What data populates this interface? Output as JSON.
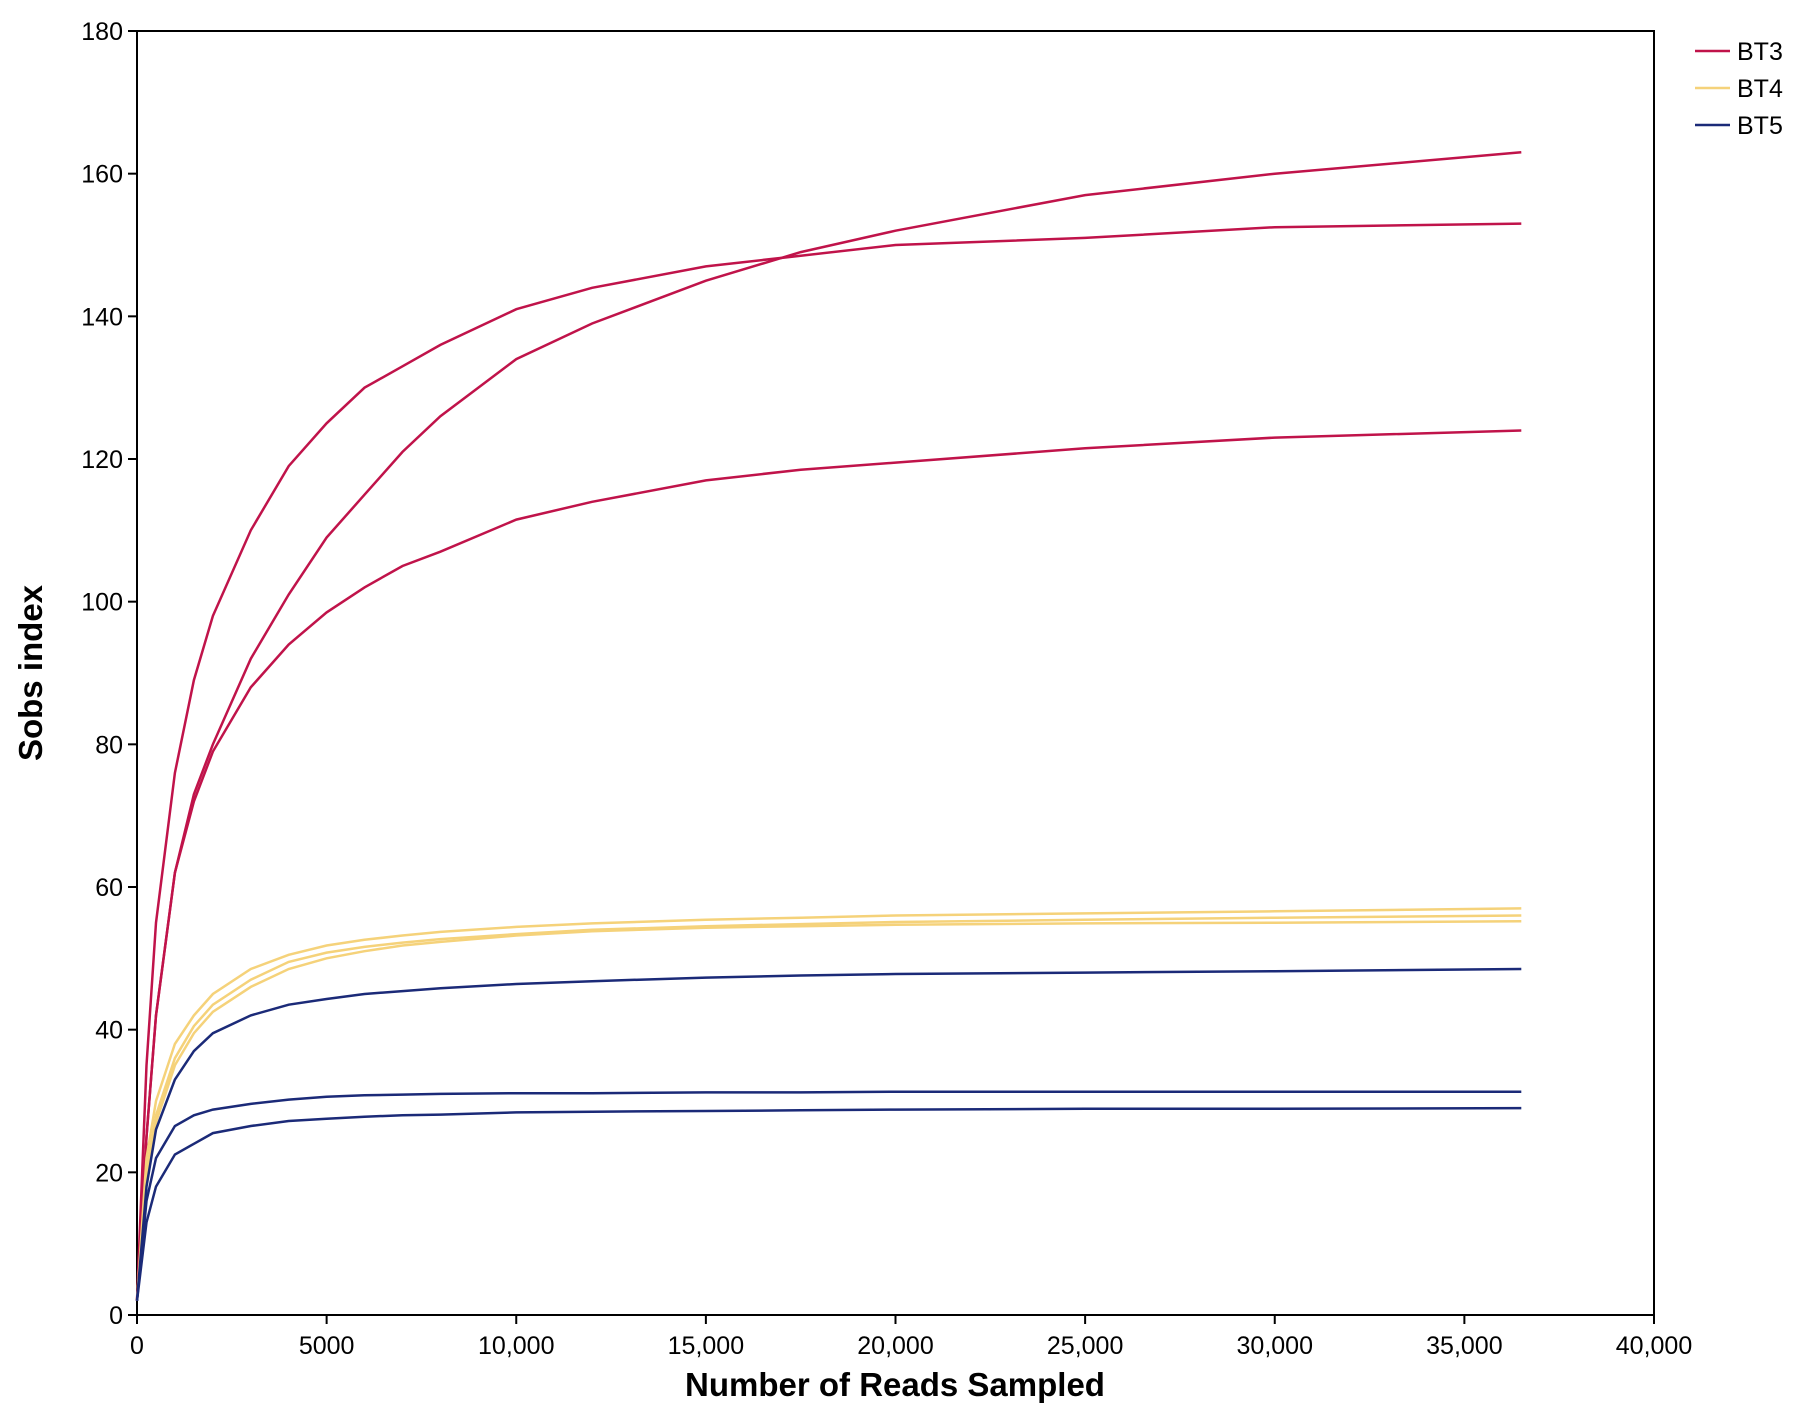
{
  "chart_data": {
    "type": "line",
    "xlabel": "Number of Reads Sampled",
    "ylabel": "Sobs index",
    "x": [
      0,
      250,
      500,
      1000,
      1500,
      2000,
      3000,
      4000,
      5000,
      6000,
      7000,
      8000,
      10000,
      12000,
      15000,
      17500,
      20000,
      25000,
      30000,
      36500
    ],
    "series": [
      {
        "name": "BT3",
        "color": "#c0134a",
        "replicates": [
          [
            2,
            25,
            42,
            62,
            73,
            80,
            92,
            101,
            109,
            115,
            121,
            126,
            134,
            139,
            145,
            149,
            152,
            157,
            160,
            163
          ],
          [
            2,
            35,
            55,
            76,
            89,
            98,
            110,
            119,
            125,
            130,
            133,
            136,
            141,
            144,
            147,
            148.5,
            150,
            151,
            152.5,
            153
          ],
          [
            2,
            25,
            42,
            62,
            72,
            79,
            88,
            94,
            98.5,
            102,
            105,
            107,
            111.5,
            114,
            117,
            118.5,
            119.5,
            121.5,
            123,
            124
          ]
        ]
      },
      {
        "name": "BT4",
        "color": "#f5d27a",
        "replicates": [
          [
            2,
            22,
            30,
            38,
            42,
            45,
            48.5,
            50.5,
            51.8,
            52.6,
            53.2,
            53.7,
            54.4,
            54.9,
            55.4,
            55.7,
            56,
            56.3,
            56.6,
            57
          ],
          [
            2,
            20,
            28,
            36,
            40.5,
            43.5,
            47,
            49.5,
            50.8,
            51.6,
            52.2,
            52.7,
            53.4,
            54,
            54.5,
            54.8,
            55.1,
            55.4,
            55.7,
            56
          ],
          [
            2,
            19,
            27,
            35,
            39.5,
            42.5,
            46,
            48.5,
            50,
            51,
            51.8,
            52.3,
            53.2,
            53.8,
            54.3,
            54.5,
            54.7,
            54.9,
            55,
            55.2
          ]
        ]
      },
      {
        "name": "BT5",
        "color": "#1b2a78",
        "replicates": [
          [
            2,
            18,
            26,
            33,
            37,
            39.5,
            42,
            43.5,
            44.3,
            45,
            45.4,
            45.8,
            46.4,
            46.8,
            47.3,
            47.6,
            47.8,
            48,
            48.2,
            48.5
          ],
          [
            2,
            16,
            22,
            26.5,
            28,
            28.8,
            29.6,
            30.2,
            30.6,
            30.8,
            30.9,
            31,
            31.1,
            31.1,
            31.2,
            31.2,
            31.3,
            31.3,
            31.3,
            31.3
          ],
          [
            2,
            13,
            18,
            22.5,
            24,
            25.5,
            26.5,
            27.2,
            27.5,
            27.8,
            28,
            28.1,
            28.4,
            28.5,
            28.6,
            28.7,
            28.8,
            28.9,
            28.9,
            29
          ]
        ]
      }
    ],
    "xlim": [
      0,
      40000
    ],
    "xticks": [
      0,
      5000,
      {
        "value": 10000,
        "label": "10,000"
      },
      {
        "value": 15000,
        "label": "15,000"
      },
      {
        "value": 20000,
        "label": "20,000"
      },
      {
        "value": 25000,
        "label": "25,000"
      },
      {
        "value": 30000,
        "label": "30,000"
      },
      {
        "value": 35000,
        "label": "35,000"
      },
      {
        "value": 40000,
        "label": "40,000"
      }
    ],
    "ylim": [
      0,
      180
    ],
    "yticks": [
      0,
      20,
      40,
      60,
      80,
      100,
      120,
      140,
      160,
      180
    ],
    "grid": false,
    "legend": "top-right"
  }
}
